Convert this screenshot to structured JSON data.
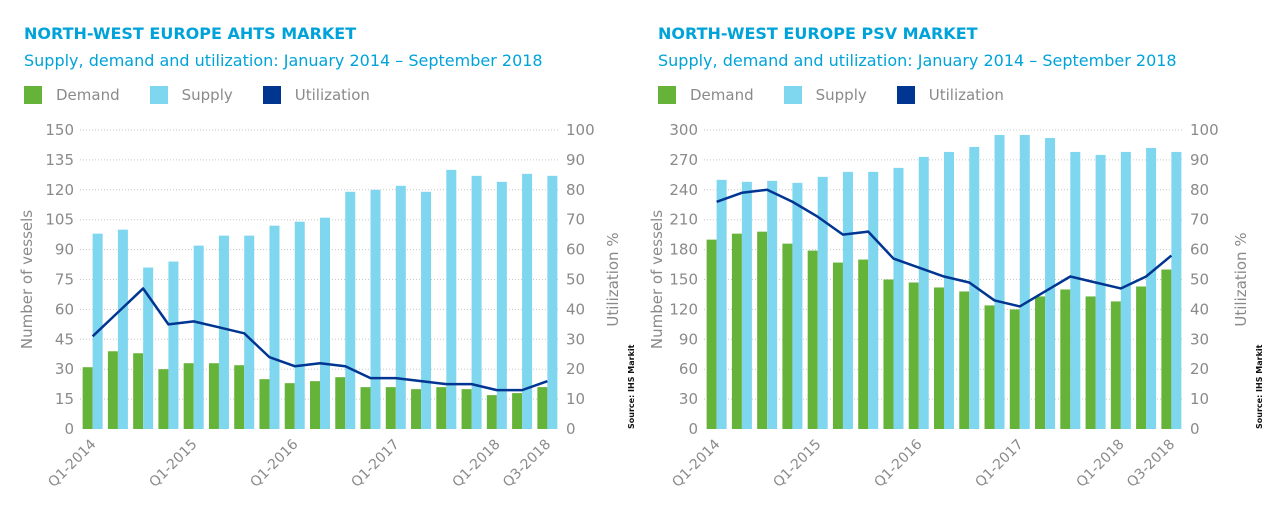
{
  "colors": {
    "title": "#00a3d9",
    "demand": "#66b339",
    "supply": "#7fd6ef",
    "utilization": "#003591",
    "axis_text": "#8a8a8a",
    "grid": "#c8c8c8"
  },
  "chart_data": [
    {
      "type": "bar",
      "title": "NORTH-WEST EUROPE AHTS MARKET",
      "subtitle": "Supply, demand and utilization: January 2014 – September 2018",
      "legend": [
        "Demand",
        "Supply",
        "Utilization"
      ],
      "legend_position": "top-left",
      "ylabel": "Number of vessels",
      "y2label": "Utilization %",
      "source": "Source: IHS Markit",
      "ylim": [
        0,
        150
      ],
      "y2lim": [
        0,
        100
      ],
      "yticks": [
        "0",
        "15",
        "30",
        "45",
        "60",
        "75",
        "90",
        "105",
        "120",
        "135",
        "150"
      ],
      "y2ticks": [
        "0",
        "10",
        "20",
        "30",
        "40",
        "50",
        "60",
        "70",
        "80",
        "90",
        "100"
      ],
      "grid": true,
      "categories": [
        "Q1-2014",
        "Q2-2014",
        "Q3-2014",
        "Q4-2014",
        "Q1-2015",
        "Q2-2015",
        "Q3-2015",
        "Q4-2015",
        "Q1-2016",
        "Q2-2016",
        "Q3-2016",
        "Q4-2016",
        "Q1-2017",
        "Q2-2017",
        "Q3-2017",
        "Q4-2017",
        "Q1-2018",
        "Q2-2018",
        "Q3-2018"
      ],
      "xtick_labels": [
        {
          "index": 0,
          "label": "Q1-2014"
        },
        {
          "index": 4,
          "label": "Q1-2015"
        },
        {
          "index": 8,
          "label": "Q1-2016"
        },
        {
          "index": 12,
          "label": "Q1-2017"
        },
        {
          "index": 16,
          "label": "Q1-2018"
        },
        {
          "index": 18,
          "label": "Q3-2018"
        }
      ],
      "series": [
        {
          "name": "Demand",
          "axis": "left",
          "kind": "bar",
          "values": [
            31,
            39,
            38,
            30,
            33,
            33,
            32,
            25,
            23,
            24,
            26,
            21,
            21,
            20,
            21,
            20,
            17,
            18,
            21
          ]
        },
        {
          "name": "Supply",
          "axis": "left",
          "kind": "bar",
          "values": [
            98,
            100,
            81,
            84,
            92,
            97,
            97,
            102,
            104,
            106,
            119,
            120,
            122,
            119,
            130,
            127,
            124,
            128,
            127
          ]
        },
        {
          "name": "Utilization",
          "axis": "right",
          "kind": "line",
          "values": [
            31,
            39,
            47,
            35,
            36,
            34,
            32,
            24,
            21,
            22,
            21,
            17,
            17,
            16,
            15,
            15,
            13,
            13,
            16
          ]
        }
      ]
    },
    {
      "type": "bar",
      "title": "NORTH-WEST EUROPE PSV MARKET",
      "subtitle": "Supply, demand and utilization: January 2014 – September 2018",
      "legend": [
        "Demand",
        "Supply",
        "Utilization"
      ],
      "legend_position": "top-left",
      "ylabel": "Number of vessels",
      "y2label": "Utilization %",
      "source": "Source: IHS Markit",
      "ylim": [
        0,
        300
      ],
      "y2lim": [
        0,
        100
      ],
      "yticks": [
        "0",
        "30",
        "60",
        "90",
        "120",
        "150",
        "180",
        "210",
        "240",
        "270",
        "300"
      ],
      "y2ticks": [
        "0",
        "10",
        "20",
        "30",
        "40",
        "50",
        "60",
        "70",
        "80",
        "90",
        "100"
      ],
      "grid": true,
      "categories": [
        "Q1-2014",
        "Q2-2014",
        "Q3-2014",
        "Q4-2014",
        "Q1-2015",
        "Q2-2015",
        "Q3-2015",
        "Q4-2015",
        "Q1-2016",
        "Q2-2016",
        "Q3-2016",
        "Q4-2016",
        "Q1-2017",
        "Q2-2017",
        "Q3-2017",
        "Q4-2017",
        "Q1-2018",
        "Q2-2018",
        "Q3-2018"
      ],
      "xtick_labels": [
        {
          "index": 0,
          "label": "Q1-2014"
        },
        {
          "index": 4,
          "label": "Q1-2015"
        },
        {
          "index": 8,
          "label": "Q1-2016"
        },
        {
          "index": 12,
          "label": "Q1-2017"
        },
        {
          "index": 16,
          "label": "Q1-2018"
        },
        {
          "index": 18,
          "label": "Q3-2018"
        }
      ],
      "series": [
        {
          "name": "Demand",
          "axis": "left",
          "kind": "bar",
          "values": [
            190,
            196,
            198,
            186,
            179,
            167,
            170,
            150,
            147,
            142,
            138,
            124,
            120,
            133,
            140,
            133,
            128,
            143,
            160
          ]
        },
        {
          "name": "Supply",
          "axis": "left",
          "kind": "bar",
          "values": [
            250,
            248,
            249,
            247,
            253,
            258,
            258,
            262,
            273,
            278,
            283,
            295,
            295,
            292,
            278,
            275,
            278,
            282,
            278
          ]
        },
        {
          "name": "Utilization",
          "axis": "right",
          "kind": "line",
          "values": [
            76,
            79,
            80,
            76,
            71,
            65,
            66,
            57,
            54,
            51,
            49,
            43,
            41,
            46,
            51,
            49,
            47,
            51,
            58
          ]
        }
      ]
    }
  ]
}
